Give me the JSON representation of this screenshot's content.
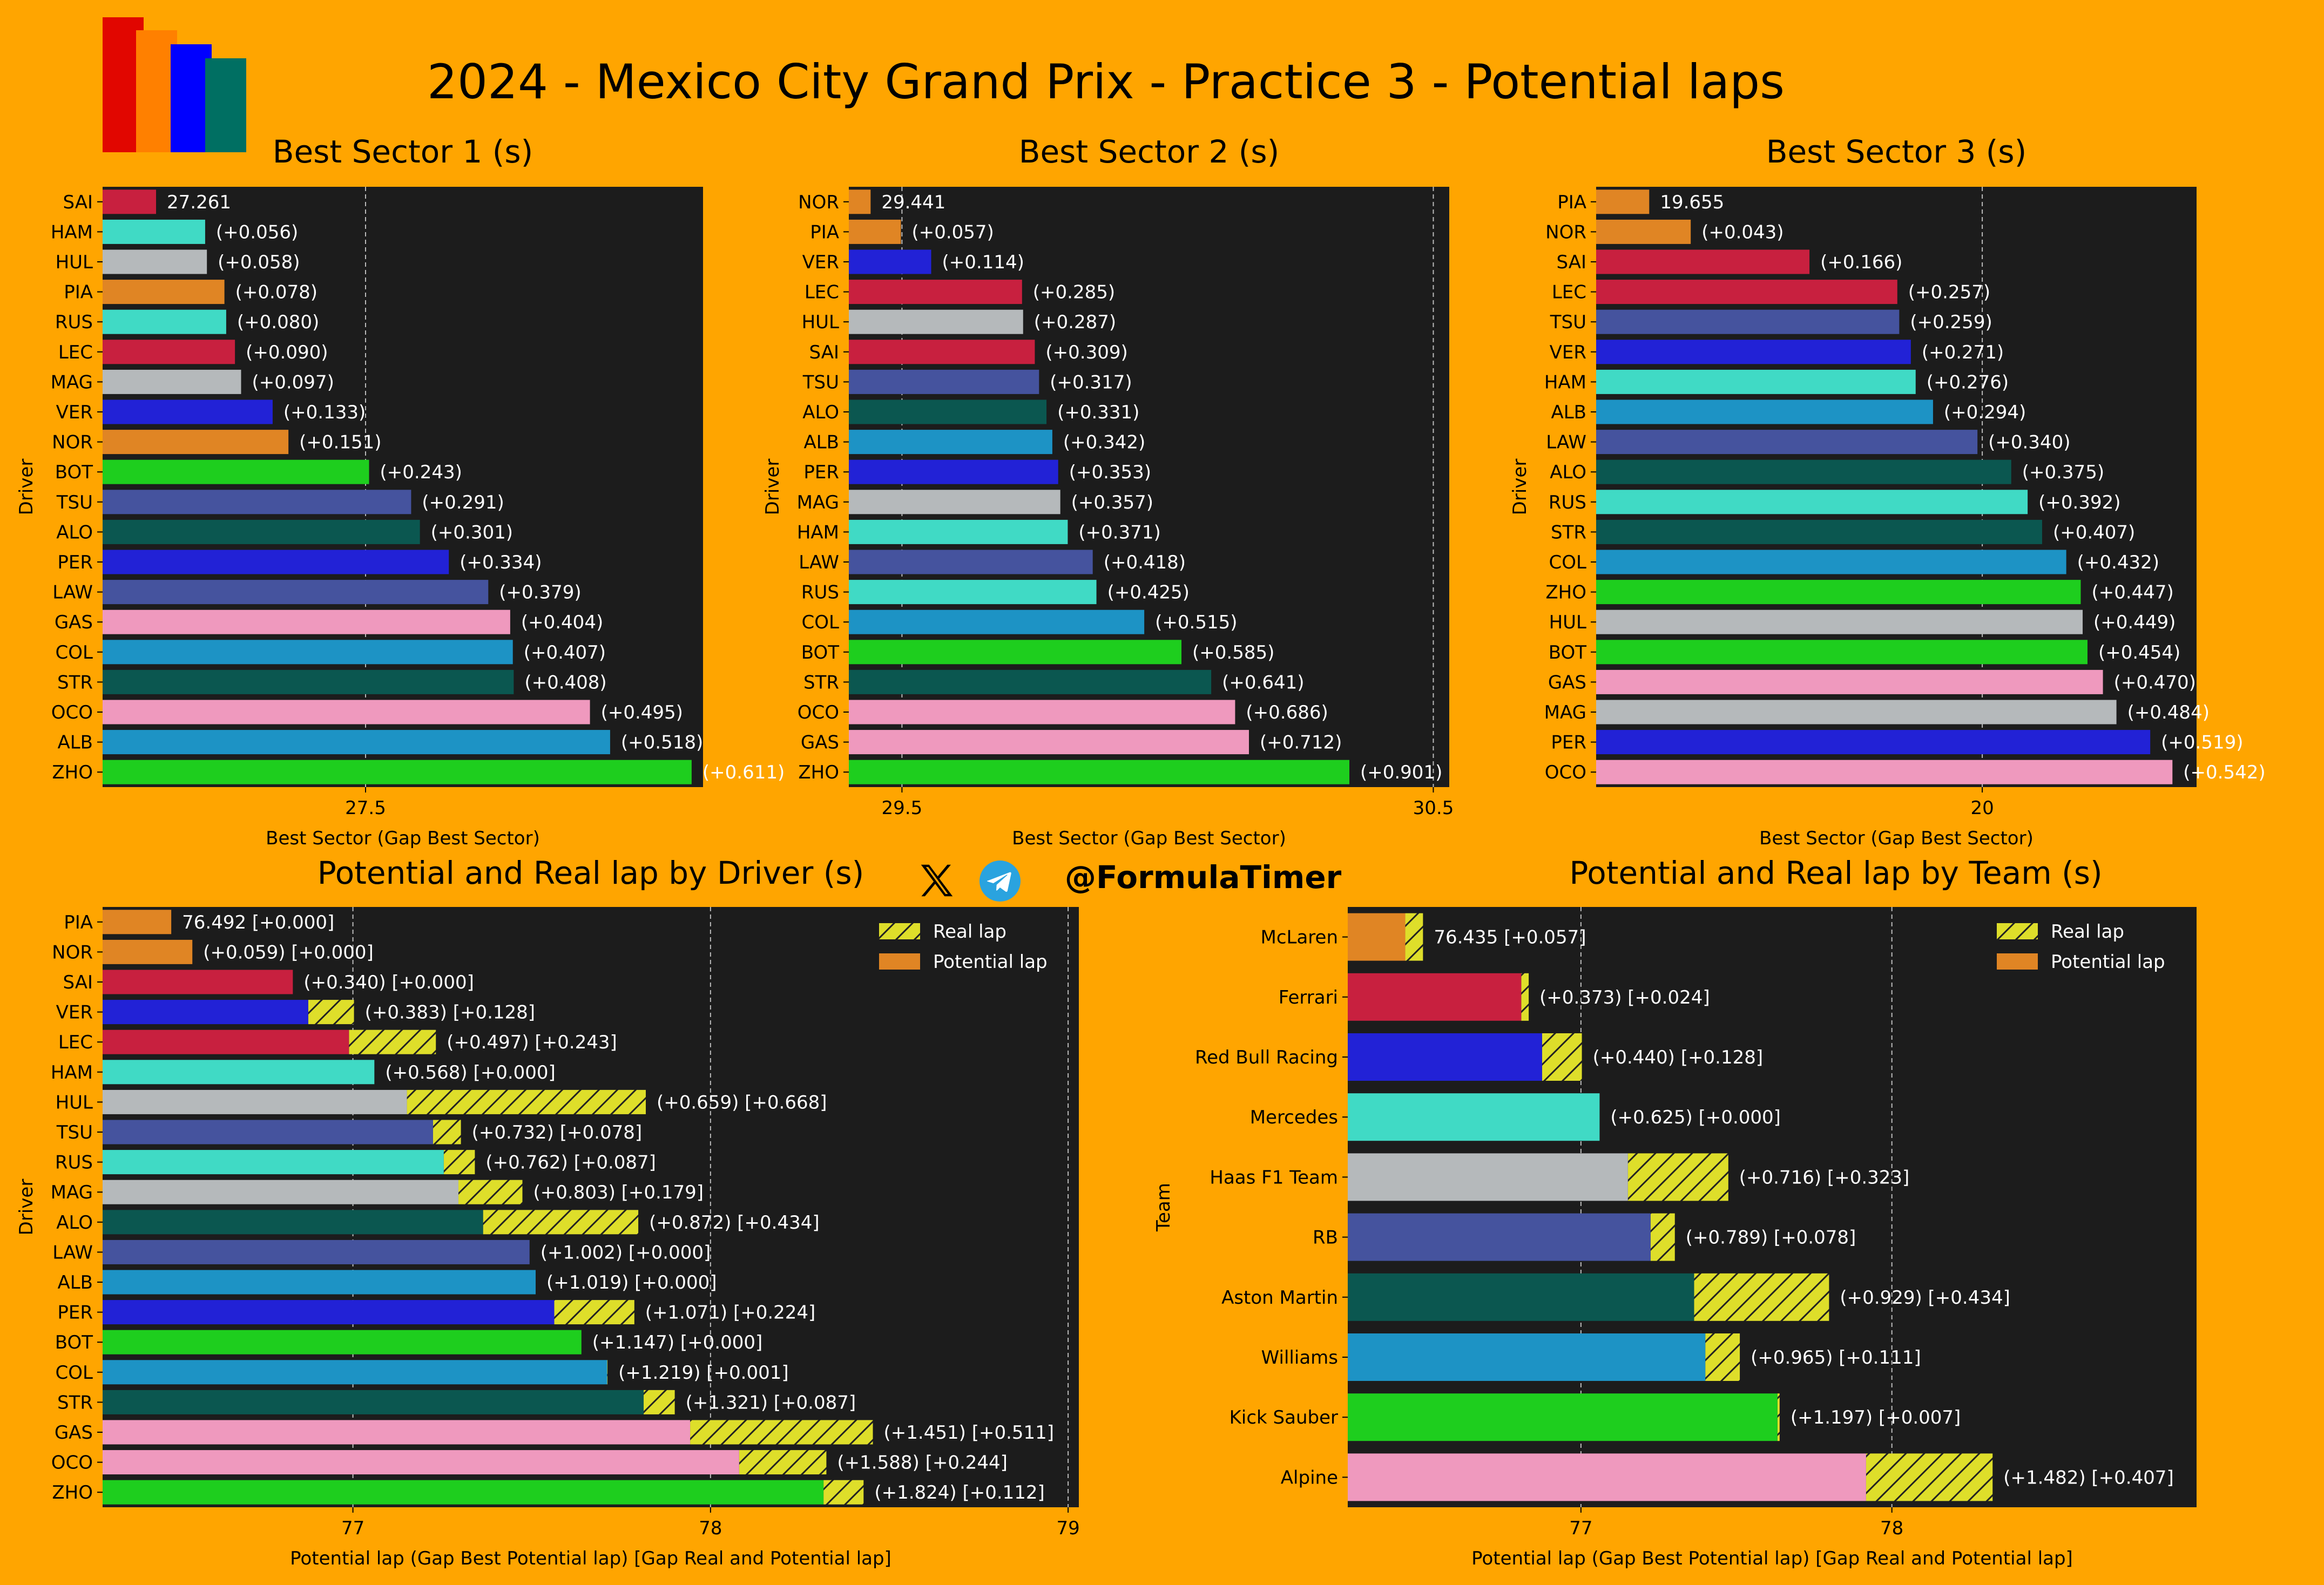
{
  "title": "2024 - Mexico City Grand Prix - Practice 3 - Potential laps",
  "handle": "@FormulaTimer",
  "icons": [
    "x-logo-icon",
    "telegram-icon"
  ],
  "logo": {
    "colors": [
      "#e10600",
      "#ff8000",
      "#0000ff",
      "#006f62"
    ]
  },
  "colors": {
    "background": "#ffa500",
    "plot_background": "#1c1c1c",
    "real_lap_hatch": "#dede2a",
    "SAI": "#c8203f",
    "LEC": "#c8203f",
    "HAM": "#40dac5",
    "RUS": "#40dac5",
    "HUL": "#b5b9bb",
    "MAG": "#b5b9bb",
    "PIA": "#e08524",
    "NOR": "#e08524",
    "VER": "#2222d6",
    "PER": "#2222d6",
    "BOT": "#1ece1e",
    "ZHO": "#1ece1e",
    "TSU": "#45539e",
    "LAW": "#45539e",
    "ALO": "#0b5750",
    "STR": "#0b5750",
    "GAS": "#ef99be",
    "OCO": "#ef99be",
    "COL": "#1d93c5",
    "ALB": "#1d93c5"
  },
  "chart_data": [
    {
      "type": "bar",
      "orientation": "horizontal",
      "title": "Best Sector 1 (s)",
      "xlabel": "Best Sector (Gap Best Sector)",
      "ylabel": "Driver",
      "xlim": [
        27.2,
        27.885
      ],
      "xticks": [
        27.5
      ],
      "grid": "x",
      "categories": [
        "SAI",
        "HAM",
        "HUL",
        "PIA",
        "RUS",
        "LEC",
        "MAG",
        "VER",
        "NOR",
        "BOT",
        "TSU",
        "ALO",
        "PER",
        "LAW",
        "GAS",
        "COL",
        "STR",
        "OCO",
        "ALB",
        "ZHO"
      ],
      "values": [
        27.261,
        27.317,
        27.319,
        27.339,
        27.341,
        27.351,
        27.358,
        27.394,
        27.412,
        27.504,
        27.552,
        27.562,
        27.595,
        27.64,
        27.665,
        27.668,
        27.669,
        27.756,
        27.779,
        27.872
      ],
      "labels": [
        "27.261",
        "(+0.056)",
        "(+0.058)",
        "(+0.078)",
        "(+0.080)",
        "(+0.090)",
        "(+0.097)",
        "(+0.133)",
        "(+0.151)",
        "(+0.243)",
        "(+0.291)",
        "(+0.301)",
        "(+0.334)",
        "(+0.379)",
        "(+0.404)",
        "(+0.407)",
        "(+0.408)",
        "(+0.495)",
        "(+0.518)",
        "(+0.611)"
      ]
    },
    {
      "type": "bar",
      "orientation": "horizontal",
      "title": "Best Sector 2 (s)",
      "xlabel": "Best Sector (Gap Best Sector)",
      "ylabel": "Driver",
      "xlim": [
        29.4,
        30.53
      ],
      "xticks": [
        29.5,
        30.5
      ],
      "grid": "x",
      "categories": [
        "NOR",
        "PIA",
        "VER",
        "LEC",
        "HUL",
        "SAI",
        "TSU",
        "ALO",
        "ALB",
        "PER",
        "MAG",
        "HAM",
        "LAW",
        "RUS",
        "COL",
        "BOT",
        "STR",
        "OCO",
        "GAS",
        "ZHO"
      ],
      "values": [
        29.441,
        29.498,
        29.555,
        29.726,
        29.728,
        29.75,
        29.758,
        29.772,
        29.783,
        29.794,
        29.798,
        29.812,
        29.859,
        29.866,
        29.956,
        30.026,
        30.082,
        30.127,
        30.153,
        30.342
      ],
      "labels": [
        "29.441",
        "(+0.057)",
        "(+0.114)",
        "(+0.285)",
        "(+0.287)",
        "(+0.309)",
        "(+0.317)",
        "(+0.331)",
        "(+0.342)",
        "(+0.353)",
        "(+0.357)",
        "(+0.371)",
        "(+0.418)",
        "(+0.425)",
        "(+0.515)",
        "(+0.585)",
        "(+0.641)",
        "(+0.686)",
        "(+0.712)",
        "(+0.901)"
      ]
    },
    {
      "type": "bar",
      "orientation": "horizontal",
      "title": "Best Sector 3 (s)",
      "xlabel": "Best Sector (Gap Best Sector)",
      "ylabel": "Driver",
      "xlim": [
        19.6,
        20.222
      ],
      "xticks": [
        20
      ],
      "grid": "x",
      "categories": [
        "PIA",
        "NOR",
        "SAI",
        "LEC",
        "TSU",
        "VER",
        "HAM",
        "ALB",
        "LAW",
        "ALO",
        "RUS",
        "STR",
        "COL",
        "ZHO",
        "HUL",
        "BOT",
        "GAS",
        "MAG",
        "PER",
        "OCO"
      ],
      "values": [
        19.655,
        19.698,
        19.821,
        19.912,
        19.914,
        19.926,
        19.931,
        19.949,
        19.995,
        20.03,
        20.047,
        20.062,
        20.087,
        20.102,
        20.104,
        20.109,
        20.125,
        20.139,
        20.174,
        20.197
      ],
      "labels": [
        "19.655",
        "(+0.043)",
        "(+0.166)",
        "(+0.257)",
        "(+0.259)",
        "(+0.271)",
        "(+0.276)",
        "(+0.294)",
        "(+0.340)",
        "(+0.375)",
        "(+0.392)",
        "(+0.407)",
        "(+0.432)",
        "(+0.447)",
        "(+0.449)",
        "(+0.454)",
        "(+0.470)",
        "(+0.484)",
        "(+0.519)",
        "(+0.542)"
      ]
    },
    {
      "type": "bar",
      "orientation": "horizontal",
      "title": "Potential and Real lap by Driver (s)",
      "xlabel": "Potential lap (Gap Best Potential lap) [Gap Real and Potential lap]",
      "ylabel": "Driver",
      "xlim": [
        76.3,
        79.03
      ],
      "xticks": [
        77,
        78,
        79
      ],
      "grid": "x",
      "legend": {
        "placement": "top-right",
        "entries": [
          "Real lap",
          "Potential lap"
        ]
      },
      "categories": [
        "PIA",
        "NOR",
        "SAI",
        "VER",
        "LEC",
        "HAM",
        "HUL",
        "TSU",
        "RUS",
        "MAG",
        "ALO",
        "LAW",
        "ALB",
        "PER",
        "BOT",
        "COL",
        "STR",
        "GAS",
        "OCO",
        "ZHO"
      ],
      "series": [
        {
          "name": "Potential lap",
          "values": [
            76.492,
            76.551,
            76.832,
            76.875,
            76.989,
            77.06,
            77.151,
            77.224,
            77.254,
            77.295,
            77.364,
            77.494,
            77.511,
            77.563,
            77.639,
            77.711,
            77.813,
            77.943,
            78.08,
            78.316
          ]
        },
        {
          "name": "Real lap",
          "values": [
            76.492,
            76.551,
            76.832,
            77.003,
            77.232,
            77.06,
            77.819,
            77.302,
            77.341,
            77.474,
            77.798,
            77.494,
            77.511,
            77.787,
            77.639,
            77.712,
            77.9,
            78.454,
            78.324,
            78.428
          ]
        }
      ],
      "labels": [
        "76.492 [+0.000]",
        "(+0.059) [+0.000]",
        "(+0.340) [+0.000]",
        "(+0.383) [+0.128]",
        "(+0.497) [+0.243]",
        "(+0.568) [+0.000]",
        "(+0.659) [+0.668]",
        "(+0.732) [+0.078]",
        "(+0.762) [+0.087]",
        "(+0.803) [+0.179]",
        "(+0.872) [+0.434]",
        "(+1.002) [+0.000]",
        "(+1.019) [+0.000]",
        "(+1.071) [+0.224]",
        "(+1.147) [+0.000]",
        "(+1.219) [+0.001]",
        "(+1.321) [+0.087]",
        "(+1.451) [+0.511]",
        "(+1.588) [+0.244]",
        "(+1.824) [+0.112]"
      ]
    },
    {
      "type": "bar",
      "orientation": "horizontal",
      "title": "Potential and Real lap by Team (s)",
      "xlabel": "Potential lap (Gap Best Potential lap) [Gap Real and Potential lap]",
      "ylabel": "Team",
      "xlim": [
        76.25,
        78.98
      ],
      "xticks": [
        77,
        78
      ],
      "grid": "x",
      "legend": {
        "placement": "top-right",
        "entries": [
          "Real lap",
          "Potential lap"
        ]
      },
      "categories": [
        "McLaren",
        "Ferrari",
        "Red Bull Racing",
        "Mercedes",
        "Haas F1 Team",
        "RB",
        "Aston Martin",
        "Williams",
        "Kick Sauber",
        "Alpine"
      ],
      "bar_colors": [
        "#e08524",
        "#c8203f",
        "#2222d6",
        "#40dac5",
        "#b5b9bb",
        "#45539e",
        "#0b5750",
        "#1d93c5",
        "#1ece1e",
        "#ef99be"
      ],
      "series": [
        {
          "name": "Potential lap",
          "values": [
            76.435,
            76.808,
            76.875,
            77.06,
            77.151,
            77.224,
            77.364,
            77.4,
            77.632,
            77.917
          ]
        },
        {
          "name": "Real lap",
          "values": [
            76.492,
            76.832,
            77.003,
            77.06,
            77.474,
            77.302,
            77.798,
            77.511,
            77.639,
            78.324
          ]
        }
      ],
      "labels": [
        "76.435 [+0.057]",
        "(+0.373) [+0.024]",
        "(+0.440) [+0.128]",
        "(+0.625) [+0.000]",
        "(+0.716) [+0.323]",
        "(+0.789) [+0.078]",
        "(+0.929) [+0.434]",
        "(+0.965) [+0.111]",
        "(+1.197) [+0.007]",
        "(+1.482) [+0.407]"
      ]
    }
  ]
}
